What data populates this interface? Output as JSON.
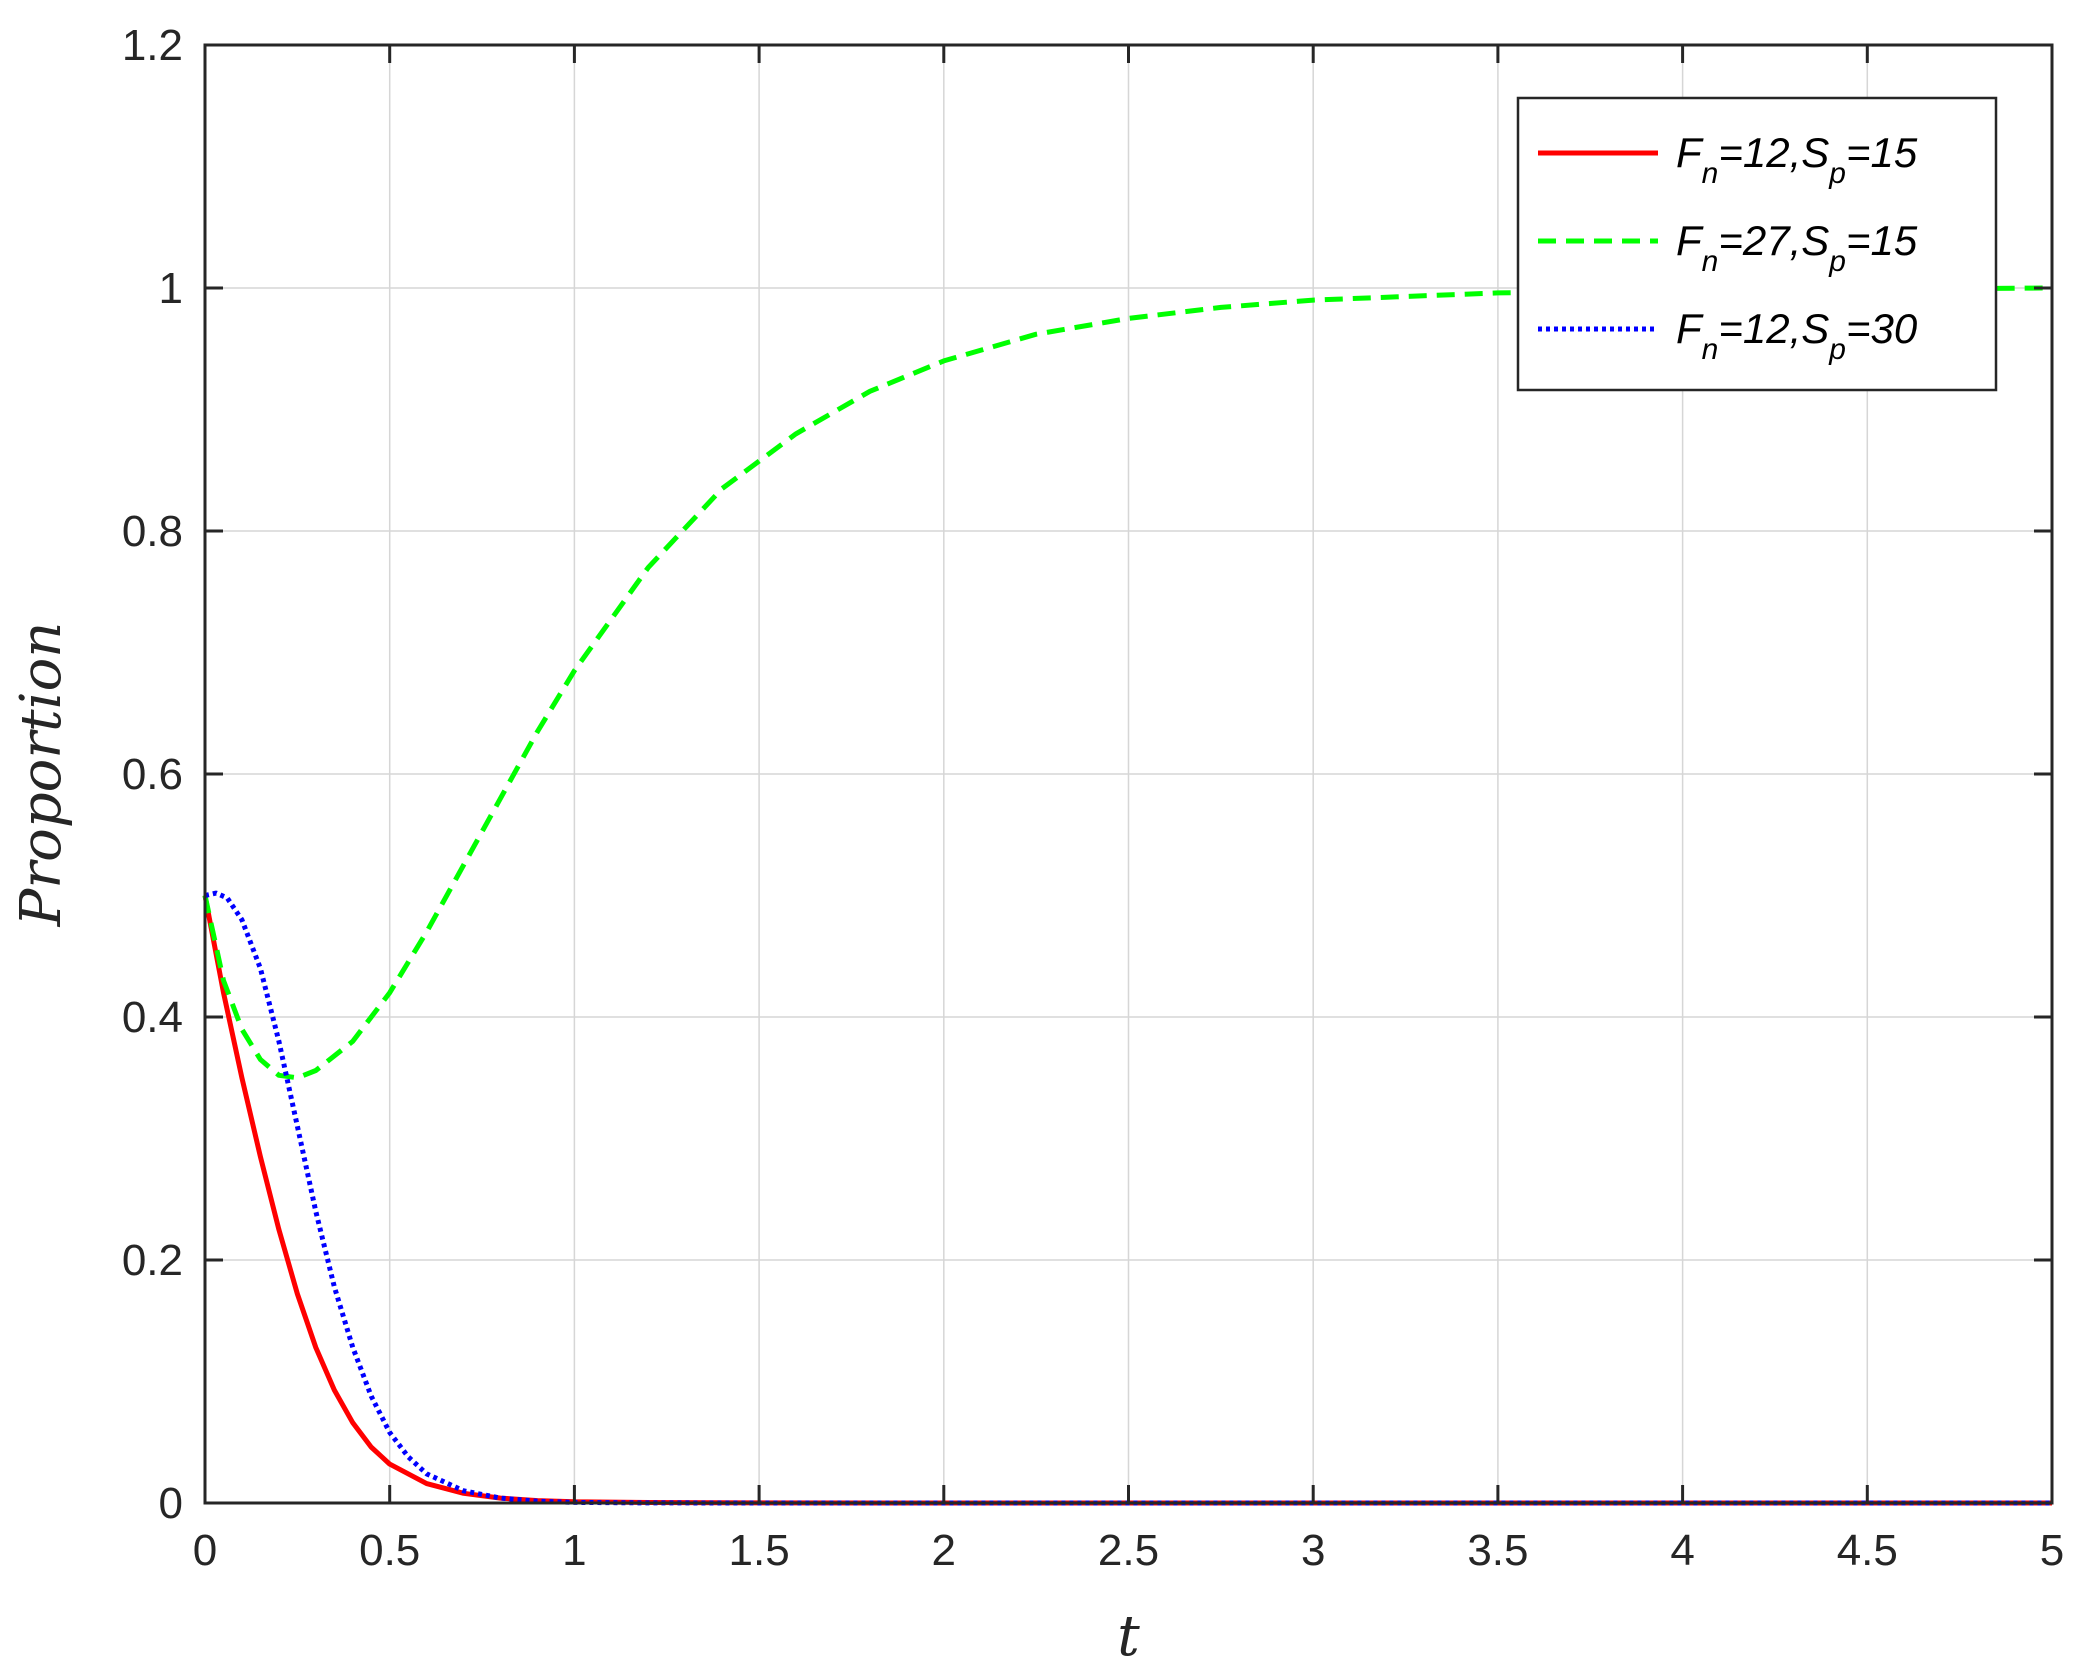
{
  "chart_data": {
    "type": "line",
    "xlabel": "t",
    "ylabel": "Proportion",
    "xlim": [
      0,
      5
    ],
    "ylim": [
      0,
      1.2
    ],
    "xticks": [
      0,
      0.5,
      1,
      1.5,
      2,
      2.5,
      3,
      3.5,
      4,
      4.5,
      5
    ],
    "xtick_labels": [
      "0",
      "0.5",
      "1",
      "1.5",
      "2",
      "2.5",
      "3",
      "3.5",
      "4",
      "4.5",
      "5"
    ],
    "yticks": [
      0,
      0.2,
      0.4,
      0.6,
      0.8,
      1,
      1.2
    ],
    "ytick_labels": [
      "0",
      "0.2",
      "0.4",
      "0.6",
      "0.8",
      "1",
      "1.2"
    ],
    "grid": true,
    "legend_position": "top-right",
    "series": [
      {
        "name": "F_n=12,S_p=15",
        "legend": {
          "a": "F",
          "a_sub": "n",
          "b": "=12,S",
          "b_sub": "p",
          "c": "=15"
        },
        "color": "#ff0000",
        "style": "solid",
        "x": [
          0,
          0.05,
          0.1,
          0.15,
          0.2,
          0.25,
          0.3,
          0.35,
          0.4,
          0.45,
          0.5,
          0.6,
          0.7,
          0.8,
          0.9,
          1.0,
          1.2,
          1.5,
          2,
          3,
          4,
          5
        ],
        "y": [
          0.5,
          0.42,
          0.35,
          0.285,
          0.225,
          0.172,
          0.128,
          0.093,
          0.066,
          0.046,
          0.032,
          0.016,
          0.008,
          0.004,
          0.002,
          0.001,
          0.0004,
          0.0001,
          0,
          0,
          0,
          0
        ]
      },
      {
        "name": "F_n=27,S_p=15",
        "legend": {
          "a": "F",
          "a_sub": "n",
          "b": "=27,S",
          "b_sub": "p",
          "c": "=15"
        },
        "color": "#00ff00",
        "style": "dashed",
        "x": [
          0,
          0.05,
          0.1,
          0.15,
          0.2,
          0.25,
          0.3,
          0.4,
          0.5,
          0.6,
          0.7,
          0.8,
          0.9,
          1.0,
          1.2,
          1.4,
          1.6,
          1.8,
          2.0,
          2.25,
          2.5,
          2.75,
          3.0,
          3.5,
          4.0,
          4.5,
          5.0
        ],
        "y": [
          0.5,
          0.43,
          0.39,
          0.365,
          0.352,
          0.35,
          0.356,
          0.38,
          0.42,
          0.47,
          0.525,
          0.58,
          0.635,
          0.685,
          0.77,
          0.835,
          0.88,
          0.915,
          0.94,
          0.962,
          0.975,
          0.984,
          0.99,
          0.996,
          0.998,
          0.999,
          1.0
        ]
      },
      {
        "name": "F_n=12,S_p=30",
        "legend": {
          "a": "F",
          "a_sub": "n",
          "b": "=12,S",
          "b_sub": "p",
          "c": "=30"
        },
        "color": "#0000ff",
        "style": "dotted",
        "x": [
          0,
          0.03,
          0.06,
          0.1,
          0.15,
          0.2,
          0.25,
          0.3,
          0.35,
          0.4,
          0.45,
          0.5,
          0.55,
          0.6,
          0.7,
          0.8,
          0.9,
          1.0,
          1.2,
          1.5,
          2,
          3,
          4,
          5
        ],
        "y": [
          0.5,
          0.502,
          0.498,
          0.48,
          0.44,
          0.38,
          0.31,
          0.24,
          0.178,
          0.128,
          0.088,
          0.058,
          0.038,
          0.024,
          0.01,
          0.004,
          0.0015,
          0.0005,
          0.0001,
          0,
          0,
          0,
          0,
          0
        ]
      }
    ]
  }
}
